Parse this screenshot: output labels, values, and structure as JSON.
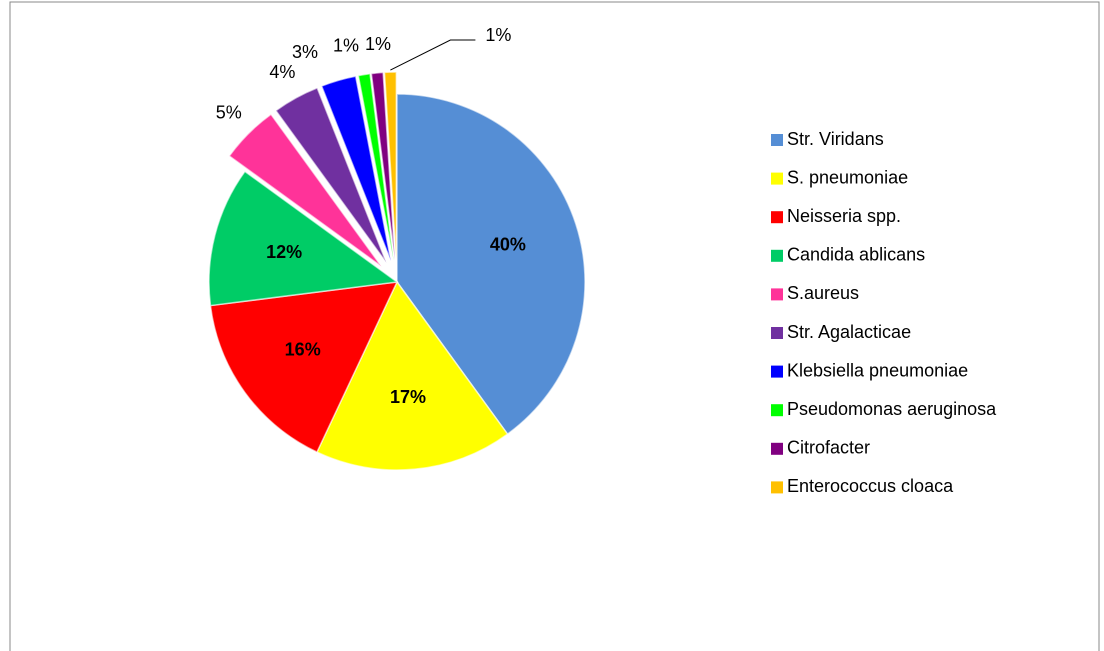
{
  "chart_data": {
    "type": "pie",
    "categories": [
      "Str. Viridans",
      "S. pneumoniae",
      "Neisseria spp.",
      "Candida ablicans",
      "S.aureus",
      "Str. Agalacticae",
      "Klebsiella pneumoniae",
      "Pseudomonas aeruginosa",
      "Citrofacter",
      "Enterococcus cloaca"
    ],
    "values": [
      40,
      17,
      16,
      12,
      5,
      4,
      3,
      1,
      1,
      1
    ],
    "value_labels": [
      "40%",
      "17%",
      "16%",
      "12%",
      "5%",
      "4%",
      "3%",
      "1%",
      "1%",
      "1%"
    ],
    "colors": [
      "#558ed5",
      "#ffff00",
      "#ff0000",
      "#00cc66",
      "#ff3399",
      "#7030a0",
      "#0000ff",
      "#00ff00",
      "#800080",
      "#ffc000"
    ],
    "legend": "right"
  }
}
